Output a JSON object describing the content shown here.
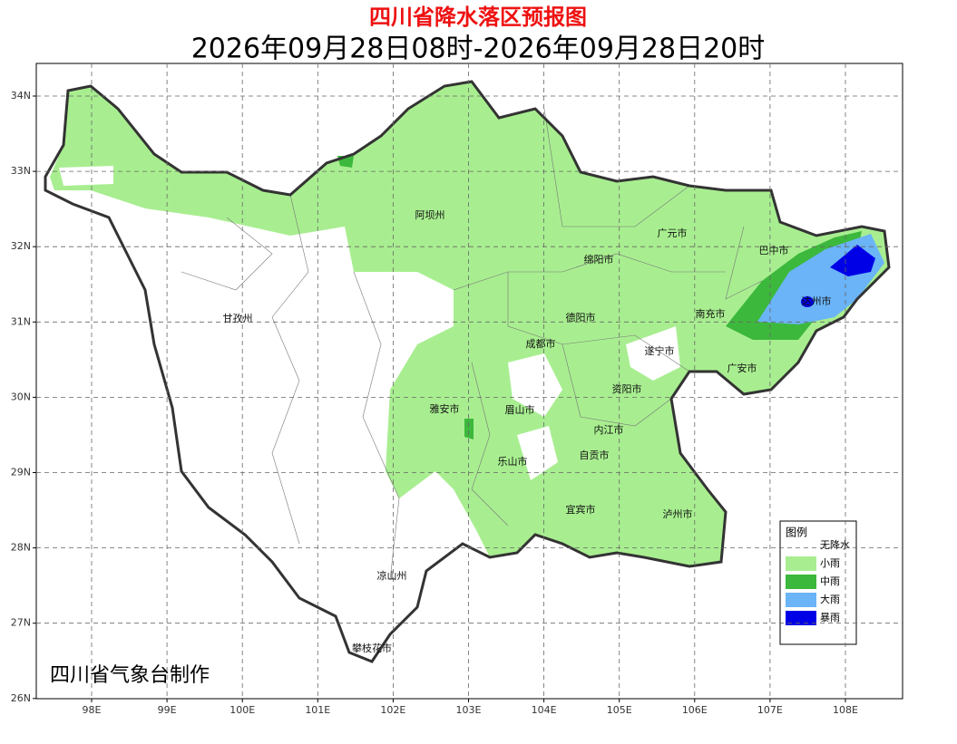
{
  "header": {
    "title": "四川省降水落区预报图",
    "subtitle": "2026年09月28日08时-2026年09月28日20时"
  },
  "map": {
    "longitude_labels": [
      "98E",
      "99E",
      "100E",
      "101E",
      "102E",
      "103E",
      "104E",
      "105E",
      "106E",
      "107E",
      "108E"
    ],
    "latitude_labels": [
      "34N",
      "33N",
      "32N",
      "31N",
      "30N",
      "29N",
      "28N",
      "27N",
      "26N"
    ],
    "places": [
      "阿坝州",
      "广元市",
      "巴中市",
      "绵阳市",
      "达州市",
      "甘孜州",
      "德阳市",
      "南充市",
      "成都市",
      "遂宁市",
      "广安市",
      "资阳市",
      "雅安市",
      "眉山市",
      "内江市",
      "自贡市",
      "乐山市",
      "宜宾市",
      "泸州市",
      "凉山州",
      "攀枝花市"
    ],
    "credit": "四川省气象台制作"
  },
  "legend": {
    "title": "图例",
    "items": [
      {
        "label": "无降水",
        "color": "#ffffff"
      },
      {
        "label": "小雨",
        "color": "#a8ee90"
      },
      {
        "label": "中雨",
        "color": "#3cb83c"
      },
      {
        "label": "大雨",
        "color": "#6ab4f7"
      },
      {
        "label": "暴雨",
        "color": "#0000e6"
      }
    ]
  }
}
